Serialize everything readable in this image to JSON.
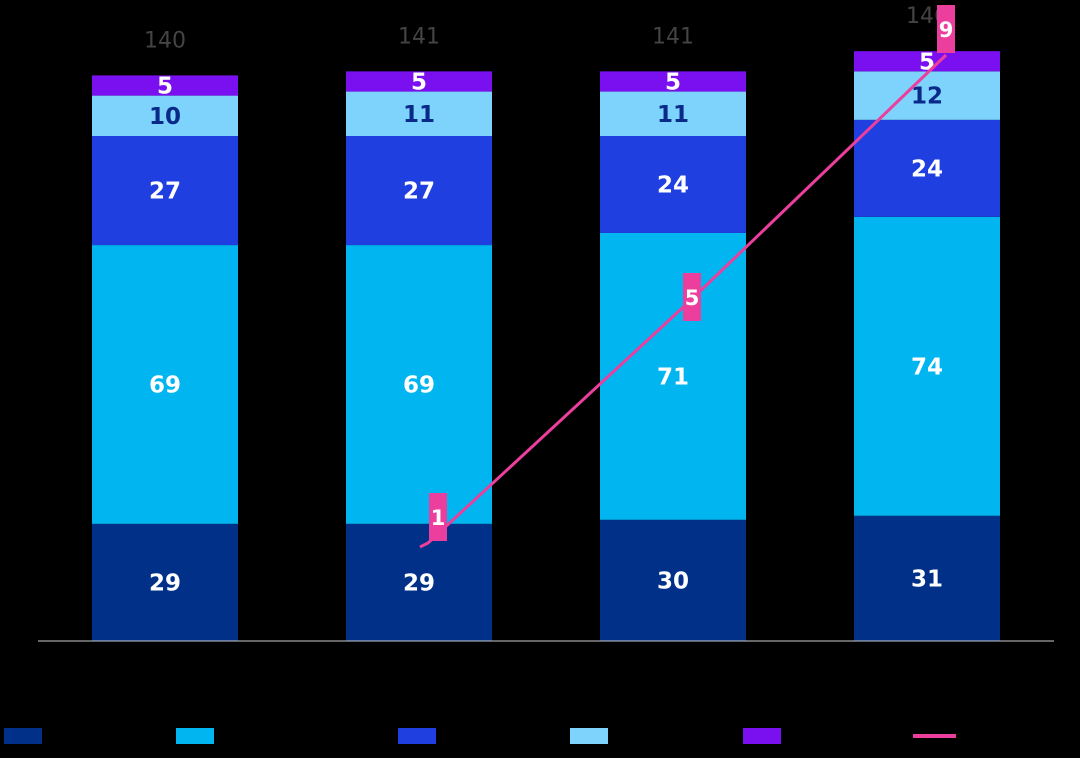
{
  "chart_data": {
    "type": "bar",
    "stacked": true,
    "categories": [
      "",
      "",
      "",
      ""
    ],
    "series": [
      {
        "values": [
          29,
          29,
          30,
          31
        ],
        "color": "#003087",
        "label_color": "#ffffff"
      },
      {
        "values": [
          69,
          69,
          71,
          74
        ],
        "color": "#00b5f0",
        "label_color": "#ffffff"
      },
      {
        "values": [
          27,
          27,
          24,
          24
        ],
        "color": "#1f3fe0",
        "label_color": "#ffffff"
      },
      {
        "values": [
          10,
          11,
          11,
          12
        ],
        "color": "#7dd3fc",
        "label_color": "#0a2a8a"
      },
      {
        "values": [
          5,
          5,
          5,
          5
        ],
        "color": "#7a10f0",
        "label_color": "#ffffff"
      }
    ],
    "totals": [
      140,
      141,
      141,
      146
    ],
    "line_series": {
      "color": "#ec3e9d",
      "points": [
        {
          "category_index": 1,
          "value": 1
        },
        {
          "category_index": 2,
          "value": 5
        },
        {
          "category_index": 3,
          "value": 9
        }
      ]
    },
    "legend": {
      "position": "bottom"
    },
    "grid": false
  }
}
